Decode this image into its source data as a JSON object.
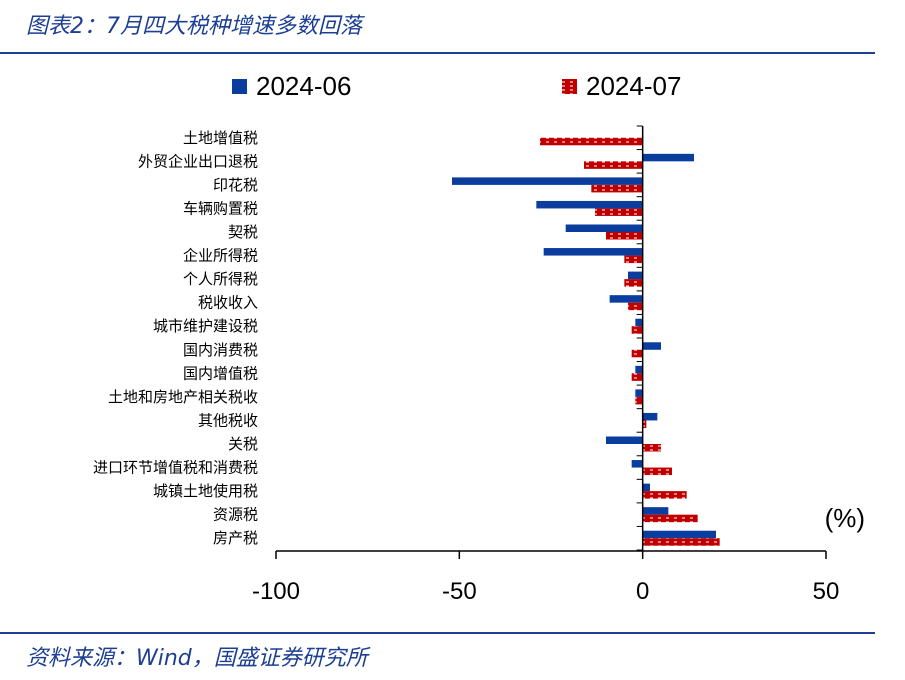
{
  "header": {
    "title": "图表2：7月四大税种增速多数回落"
  },
  "footer": {
    "source": "资料来源：Wind，国盛证券研究所"
  },
  "chart_data": {
    "type": "bar",
    "orientation": "horizontal",
    "title": "",
    "unit": "(%)",
    "xlim": [
      -100,
      50
    ],
    "xticks": [
      -100,
      -50,
      0,
      50
    ],
    "categories": [
      "土地增值税",
      "外贸企业出口退税",
      "印花税",
      "车辆购置税",
      "契税",
      "企业所得税",
      "个人所得税",
      "税收收入",
      "城市维护建设税",
      "国内消费税",
      "国内增值税",
      "土地和房地产相关税收",
      "其他税收",
      "关税",
      "进口环节增值税和消费税",
      "城镇土地使用税",
      "资源税",
      "房产税"
    ],
    "series": [
      {
        "name": "2024-06",
        "color": "#0a3d9e",
        "values": [
          0,
          14,
          -52,
          -29,
          -21,
          -27,
          -4,
          -9,
          -2,
          5,
          -2,
          -2,
          4,
          -10,
          -3,
          2,
          7,
          20
        ]
      },
      {
        "name": "2024-07",
        "color": "#c00000",
        "values": [
          -28,
          -16,
          -14,
          -13,
          -10,
          -5,
          -5,
          -4,
          -3,
          -3,
          -3,
          -2,
          1,
          5,
          8,
          12,
          15,
          21
        ]
      }
    ],
    "legend_position": "top",
    "grid": false
  }
}
